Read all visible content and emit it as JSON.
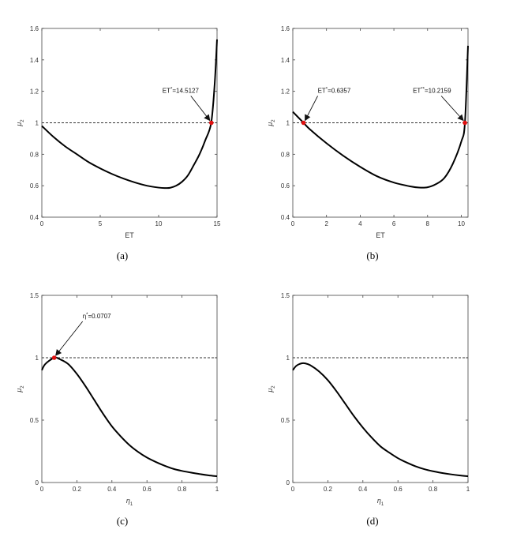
{
  "colors": {
    "curve": "#000000",
    "marker": "#e01010",
    "reference": "#333333",
    "axis": "#444444"
  },
  "chart_data": [
    {
      "type": "line",
      "caption": "(a)",
      "xlabel": "ET",
      "ylabel_base": "μ",
      "ylabel_sub": "2",
      "xlim": [
        0,
        15
      ],
      "ylim": [
        0.4,
        1.6
      ],
      "xticks": [
        0,
        5,
        10,
        15
      ],
      "yticks": [
        0.4,
        0.6,
        0.8,
        1,
        1.2,
        1.4,
        1.6
      ],
      "xtick_labels": [
        "0",
        "5",
        "10",
        "15"
      ],
      "ytick_labels": [
        "0.4",
        "0.6",
        "0.8",
        "1",
        "1.2",
        "1.4",
        "1.6"
      ],
      "reference_line": {
        "y": 1,
        "style": "dashed"
      },
      "series": [
        {
          "x": [
            0,
            1,
            2,
            3,
            4,
            5,
            6,
            7,
            8,
            9,
            10,
            10.5,
            11,
            11.5,
            12,
            12.5,
            13,
            13.5,
            14,
            14.5,
            14.8,
            15
          ],
          "y": [
            0.98,
            0.91,
            0.85,
            0.8,
            0.75,
            0.71,
            0.675,
            0.645,
            0.62,
            0.6,
            0.588,
            0.585,
            0.587,
            0.6,
            0.625,
            0.665,
            0.73,
            0.8,
            0.89,
            1.0,
            1.25,
            1.53
          ]
        }
      ],
      "markers": [
        {
          "x": 14.5127,
          "y": 1,
          "label_base": "ET",
          "label_sup": "*",
          "label_value": "=14.5127"
        }
      ]
    },
    {
      "type": "line",
      "caption": "(b)",
      "xlabel": "ET",
      "ylabel_base": "μ",
      "ylabel_sub": "2",
      "xlim": [
        0,
        10.4
      ],
      "ylim": [
        0.4,
        1.6
      ],
      "xticks": [
        0,
        2,
        4,
        6,
        8,
        10
      ],
      "yticks": [
        0.4,
        0.6,
        0.8,
        1,
        1.2,
        1.4,
        1.6
      ],
      "xtick_labels": [
        "0",
        "2",
        "4",
        "6",
        "8",
        "10"
      ],
      "ytick_labels": [
        "0.4",
        "0.6",
        "0.8",
        "1",
        "1.2",
        "1.4",
        "1.6"
      ],
      "reference_line": {
        "y": 1,
        "style": "dashed"
      },
      "series": [
        {
          "x": [
            0,
            0.6357,
            1,
            2,
            3,
            4,
            5,
            6,
            7,
            7.5,
            8,
            8.5,
            9,
            9.5,
            10,
            10.2159,
            10.4
          ],
          "y": [
            1.07,
            1.0,
            0.96,
            0.87,
            0.79,
            0.72,
            0.66,
            0.62,
            0.595,
            0.588,
            0.59,
            0.61,
            0.65,
            0.74,
            0.88,
            1.0,
            1.49
          ]
        }
      ],
      "markers": [
        {
          "x": 0.6357,
          "y": 1,
          "label_base": "ET",
          "label_sup": "*",
          "label_value": "=0.6357"
        },
        {
          "x": 10.2159,
          "y": 1,
          "label_base": "ET",
          "label_sup": "**",
          "label_value": "=10.2159"
        }
      ]
    },
    {
      "type": "line",
      "caption": "(c)",
      "xlabel_base": "η",
      "xlabel_sub": "1",
      "ylabel_base": "μ",
      "ylabel_sub": "2",
      "xlim": [
        0,
        1
      ],
      "ylim": [
        0,
        1.5
      ],
      "xticks": [
        0,
        0.2,
        0.4,
        0.6,
        0.8,
        1
      ],
      "yticks": [
        0,
        0.5,
        1,
        1.5
      ],
      "xtick_labels": [
        "0",
        "0.2",
        "0.4",
        "0.6",
        "0.8",
        "1"
      ],
      "ytick_labels": [
        "0",
        "0.5",
        "1",
        "1.5"
      ],
      "reference_line": {
        "y": 1,
        "style": "dashed"
      },
      "series": [
        {
          "x": [
            0,
            0.02,
            0.0707,
            0.1,
            0.15,
            0.2,
            0.25,
            0.3,
            0.35,
            0.4,
            0.45,
            0.5,
            0.55,
            0.6,
            0.65,
            0.7,
            0.75,
            0.8,
            0.85,
            0.9,
            0.95,
            1
          ],
          "y": [
            0.9,
            0.95,
            1.0,
            0.99,
            0.95,
            0.87,
            0.77,
            0.66,
            0.55,
            0.45,
            0.37,
            0.3,
            0.245,
            0.2,
            0.165,
            0.135,
            0.11,
            0.093,
            0.08,
            0.068,
            0.058,
            0.05
          ]
        }
      ],
      "markers": [
        {
          "x": 0.0707,
          "y": 1,
          "label_base": "η",
          "label_sup": "*",
          "label_value": "=0.0707"
        }
      ]
    },
    {
      "type": "line",
      "caption": "(d)",
      "xlabel_base": "η",
      "xlabel_sub": "1",
      "ylabel_base": "μ",
      "ylabel_sub": "2",
      "xlim": [
        0,
        1
      ],
      "ylim": [
        0,
        1.5
      ],
      "xticks": [
        0,
        0.2,
        0.4,
        0.6,
        0.8,
        1
      ],
      "yticks": [
        0,
        0.5,
        1,
        1.5
      ],
      "xtick_labels": [
        "0",
        "0.2",
        "0.4",
        "0.6",
        "0.8",
        "1"
      ],
      "ytick_labels": [
        "0",
        "0.5",
        "1",
        "1.5"
      ],
      "reference_line": {
        "y": 1,
        "style": "dashed"
      },
      "series": [
        {
          "x": [
            0,
            0.02,
            0.05,
            0.07,
            0.1,
            0.15,
            0.2,
            0.25,
            0.3,
            0.35,
            0.4,
            0.45,
            0.5,
            0.55,
            0.6,
            0.65,
            0.7,
            0.75,
            0.8,
            0.85,
            0.9,
            0.95,
            1
          ],
          "y": [
            0.9,
            0.935,
            0.955,
            0.955,
            0.94,
            0.89,
            0.82,
            0.73,
            0.63,
            0.53,
            0.44,
            0.36,
            0.29,
            0.24,
            0.195,
            0.16,
            0.13,
            0.107,
            0.09,
            0.077,
            0.066,
            0.057,
            0.05
          ]
        }
      ],
      "markers": []
    }
  ]
}
